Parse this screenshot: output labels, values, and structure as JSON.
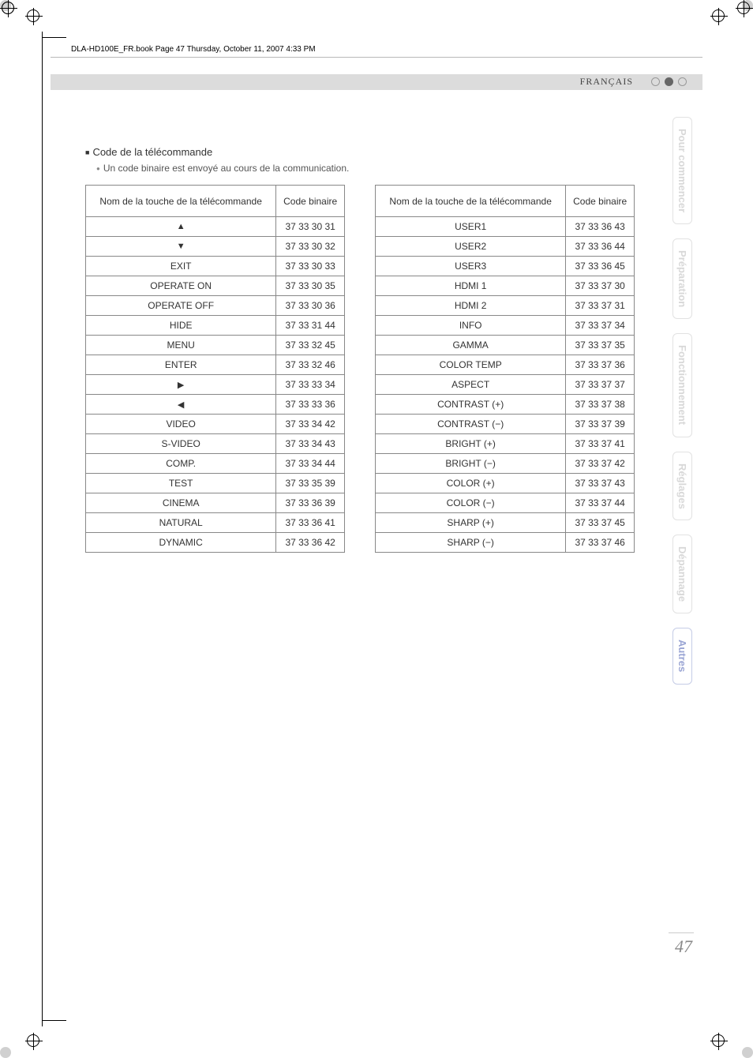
{
  "header": {
    "file_line": "DLA-HD100E_FR.book  Page 47  Thursday, October 11, 2007  4:33 PM",
    "language": "FRANÇAIS"
  },
  "section": {
    "title": "Code de la télécommande",
    "note": "Un code binaire est envoyé au cours de la communication."
  },
  "table_headers": {
    "col1": "Nom de la touche de la télécommande",
    "col2": "Code binaire"
  },
  "table_left": [
    {
      "name": "▲",
      "code": "37 33 30 31"
    },
    {
      "name": "▼",
      "code": "37 33 30 32"
    },
    {
      "name": "EXIT",
      "code": "37 33 30 33"
    },
    {
      "name": "OPERATE ON",
      "code": "37 33 30 35"
    },
    {
      "name": "OPERATE OFF",
      "code": "37 33 30 36"
    },
    {
      "name": "HIDE",
      "code": "37 33 31 44"
    },
    {
      "name": "MENU",
      "code": "37 33 32 45"
    },
    {
      "name": "ENTER",
      "code": "37 33 32 46"
    },
    {
      "name": "▶",
      "code": "37 33 33 34"
    },
    {
      "name": "◀",
      "code": "37 33 33 36"
    },
    {
      "name": "VIDEO",
      "code": "37 33 34 42"
    },
    {
      "name": "S-VIDEO",
      "code": "37 33 34 43"
    },
    {
      "name": "COMP.",
      "code": "37 33 34 44"
    },
    {
      "name": "TEST",
      "code": "37 33 35 39"
    },
    {
      "name": "CINEMA",
      "code": "37 33 36 39"
    },
    {
      "name": "NATURAL",
      "code": "37 33 36 41"
    },
    {
      "name": "DYNAMIC",
      "code": "37 33 36 42"
    }
  ],
  "table_right": [
    {
      "name": "USER1",
      "code": "37 33 36 43"
    },
    {
      "name": "USER2",
      "code": "37 33 36 44"
    },
    {
      "name": "USER3",
      "code": "37 33 36 45"
    },
    {
      "name": "HDMI 1",
      "code": "37 33 37 30"
    },
    {
      "name": "HDMI 2",
      "code": "37 33 37 31"
    },
    {
      "name": "INFO",
      "code": "37 33 37 34"
    },
    {
      "name": "GAMMA",
      "code": "37 33 37 35"
    },
    {
      "name": "COLOR TEMP",
      "code": "37 33 37 36"
    },
    {
      "name": "ASPECT",
      "code": "37 33 37 37"
    },
    {
      "name": "CONTRAST (+)",
      "code": "37 33 37 38"
    },
    {
      "name": "CONTRAST (−)",
      "code": "37 33 37 39"
    },
    {
      "name": "BRIGHT (+)",
      "code": "37 33 37 41"
    },
    {
      "name": "BRIGHT (−)",
      "code": "37 33 37 42"
    },
    {
      "name": "COLOR (+)",
      "code": "37 33 37 43"
    },
    {
      "name": "COLOR (−)",
      "code": "37 33 37 44"
    },
    {
      "name": "SHARP (+)",
      "code": "37 33 37 45"
    },
    {
      "name": "SHARP (−)",
      "code": "37 33 37 46"
    }
  ],
  "tabs": [
    {
      "label": "Pour commencer",
      "active": false
    },
    {
      "label": "Préparation",
      "active": false
    },
    {
      "label": "Fonctionnement",
      "active": false
    },
    {
      "label": "Réglages",
      "active": false
    },
    {
      "label": "Dépannage",
      "active": false
    },
    {
      "label": "Autres",
      "active": true
    }
  ],
  "page_number": "47"
}
